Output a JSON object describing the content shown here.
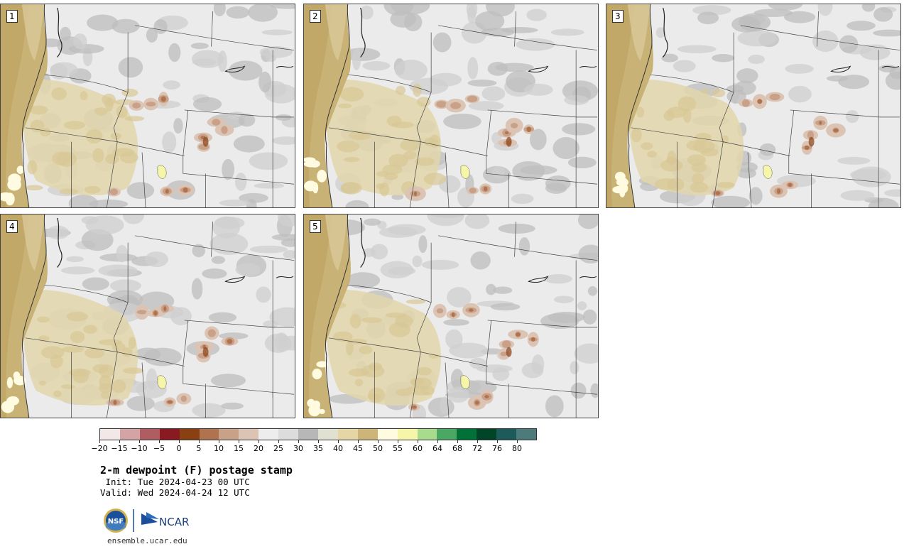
{
  "panels": [
    {
      "label": "1"
    },
    {
      "label": "2"
    },
    {
      "label": "3"
    },
    {
      "label": "4"
    },
    {
      "label": "5"
    }
  ],
  "colorbar": {
    "colors": [
      "#f2e8e8",
      "#d4a3a6",
      "#b05c63",
      "#8a1a22",
      "#8a4012",
      "#b07350",
      "#c9a088",
      "#dcc4b4",
      "#ededed",
      "#dcdcdc",
      "#b7b7b7",
      "#e1e1d2",
      "#e6d6a6",
      "#cdb478",
      "#fffbe0",
      "#f6f6aa",
      "#a8dc8c",
      "#4aa864",
      "#007238",
      "#004528",
      "#1d5a5a",
      "#4d7b7b"
    ],
    "tick_labels": [
      "−20",
      "−15",
      "−10",
      "−5",
      "0",
      "5",
      "10",
      "15",
      "20",
      "25",
      "30",
      "35",
      "40",
      "45",
      "50",
      "55",
      "60",
      "64",
      "68",
      "72",
      "76",
      "80"
    ]
  },
  "title": "2-m dewpoint (F) postage stamp",
  "init_line": " Init: Tue 2024-04-23 00 UTC",
  "valid_line": "Valid: Wed 2024-04-24 12 UTC",
  "logos": {
    "nsf": "NSF",
    "ncar": "NCAR"
  },
  "site": "ensemble.ucar.edu"
}
